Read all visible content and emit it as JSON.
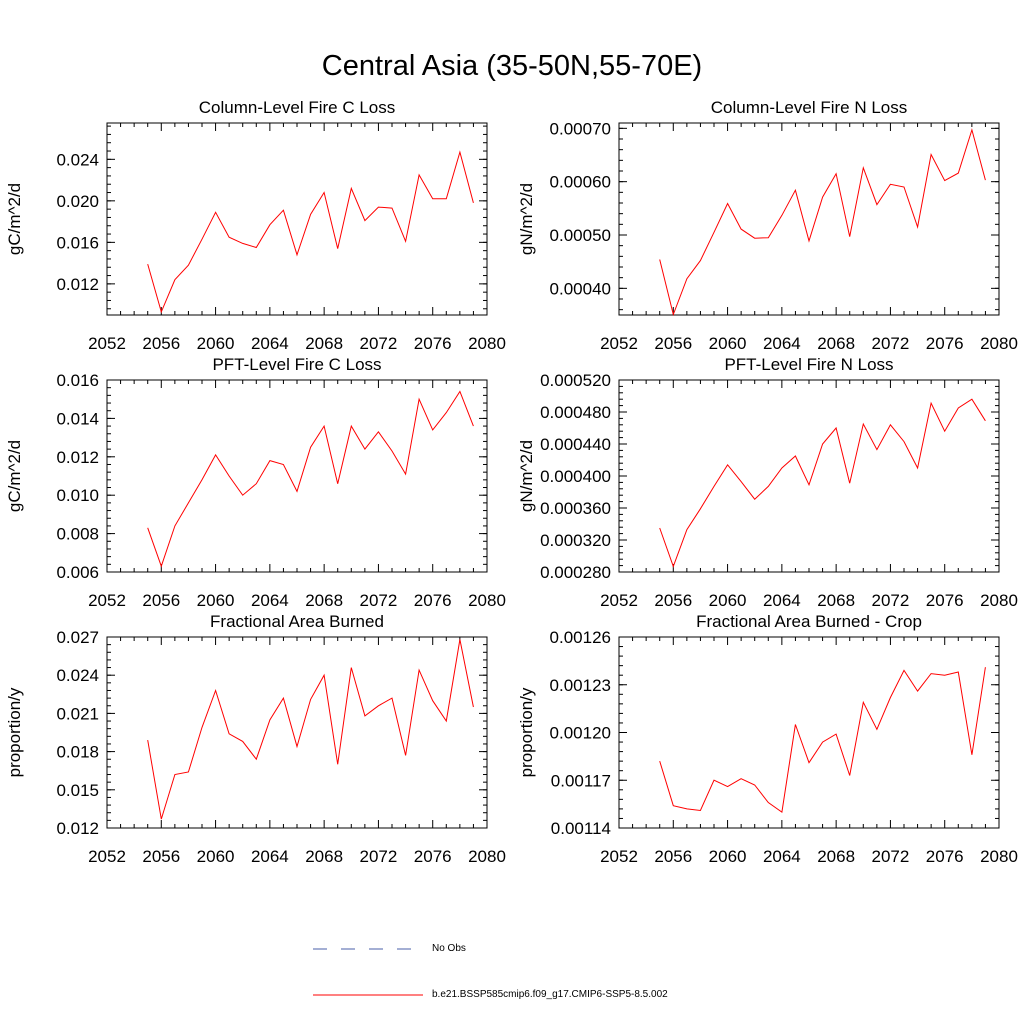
{
  "main_title": "Central Asia (35-50N,55-70E)",
  "legend": [
    {
      "label": "No Obs",
      "color": "#4a5fa8",
      "dashed": true
    },
    {
      "label": "b.e21.BSSP585cmip6.f09_g17.CMIP6-SSP5-8.5.002",
      "color": "#ff0000",
      "dashed": false
    }
  ],
  "chart_data": [
    {
      "type": "line",
      "title": "Column-Level Fire C Loss",
      "ylabel": "gC/m^2/d",
      "xlim": [
        2052,
        2080
      ],
      "ylim": [
        0.009,
        0.0275
      ],
      "xticks": [
        2052,
        2056,
        2060,
        2064,
        2068,
        2072,
        2076,
        2080
      ],
      "yticks": [
        0.012,
        0.016,
        0.02,
        0.024
      ],
      "ytick_labels": [
        "0.012",
        "0.016",
        "0.020",
        "0.024"
      ],
      "series": [
        {
          "name": "b.e21.BSSP585cmip6.f09_g17.CMIP6-SSP5-8.5.002",
          "color": "#ff0000",
          "x": [
            2055,
            2056,
            2057,
            2058,
            2059,
            2060,
            2061,
            2062,
            2063,
            2064,
            2065,
            2066,
            2067,
            2068,
            2069,
            2070,
            2071,
            2072,
            2073,
            2074,
            2075,
            2076,
            2077,
            2078,
            2079
          ],
          "y": [
            0.0139,
            0.0093,
            0.0124,
            0.0138,
            0.0163,
            0.0189,
            0.0165,
            0.0159,
            0.0155,
            0.0177,
            0.0191,
            0.0148,
            0.0187,
            0.0208,
            0.0154,
            0.0212,
            0.0181,
            0.0194,
            0.0193,
            0.0161,
            0.0225,
            0.0202,
            0.0202,
            0.0247,
            0.0198
          ]
        }
      ]
    },
    {
      "type": "line",
      "title": "Column-Level Fire N Loss",
      "ylabel": "gN/m^2/d",
      "xlim": [
        2052,
        2080
      ],
      "ylim": [
        0.00035,
        0.00071
      ],
      "xticks": [
        2052,
        2056,
        2060,
        2064,
        2068,
        2072,
        2076,
        2080
      ],
      "yticks": [
        0.0004,
        0.0005,
        0.0006,
        0.0007
      ],
      "ytick_labels": [
        "0.00040",
        "0.00050",
        "0.00060",
        "0.00070"
      ],
      "series": [
        {
          "name": "b.e21.BSSP585cmip6.f09_g17.CMIP6-SSP5-8.5.002",
          "color": "#ff0000",
          "x": [
            2055,
            2056,
            2057,
            2058,
            2059,
            2060,
            2061,
            2062,
            2063,
            2064,
            2065,
            2066,
            2067,
            2068,
            2069,
            2070,
            2071,
            2072,
            2073,
            2074,
            2075,
            2076,
            2077,
            2078,
            2079
          ],
          "y": [
            0.000454,
            0.000351,
            0.000418,
            0.000452,
            0.000505,
            0.000559,
            0.000511,
            0.000494,
            0.000495,
            0.000537,
            0.000584,
            0.000489,
            0.000571,
            0.000615,
            0.000497,
            0.000626,
            0.000557,
            0.000595,
            0.00059,
            0.000515,
            0.000651,
            0.000602,
            0.000616,
            0.000697,
            0.000603
          ]
        }
      ]
    },
    {
      "type": "line",
      "title": "PFT-Level Fire C Loss",
      "ylabel": "gC/m^2/d",
      "xlim": [
        2052,
        2080
      ],
      "ylim": [
        0.006,
        0.016
      ],
      "xticks": [
        2052,
        2056,
        2060,
        2064,
        2068,
        2072,
        2076,
        2080
      ],
      "yticks": [
        0.006,
        0.008,
        0.01,
        0.012,
        0.014,
        0.016
      ],
      "ytick_labels": [
        "0.006",
        "0.008",
        "0.010",
        "0.012",
        "0.014",
        "0.016"
      ],
      "series": [
        {
          "name": "b.e21.BSSP585cmip6.f09_g17.CMIP6-SSP5-8.5.002",
          "color": "#ff0000",
          "x": [
            2055,
            2056,
            2057,
            2058,
            2059,
            2060,
            2061,
            2062,
            2063,
            2064,
            2065,
            2066,
            2067,
            2068,
            2069,
            2070,
            2071,
            2072,
            2073,
            2074,
            2075,
            2076,
            2077,
            2078,
            2079
          ],
          "y": [
            0.0083,
            0.0063,
            0.0084,
            0.0096,
            0.0108,
            0.0121,
            0.011,
            0.01,
            0.0106,
            0.0118,
            0.0116,
            0.0102,
            0.0125,
            0.0136,
            0.0106,
            0.0136,
            0.0124,
            0.0133,
            0.0123,
            0.0111,
            0.015,
            0.0134,
            0.0143,
            0.0154,
            0.0136
          ]
        }
      ]
    },
    {
      "type": "line",
      "title": "PFT-Level Fire N Loss",
      "ylabel": "gN/m^2/d",
      "xlim": [
        2052,
        2080
      ],
      "ylim": [
        0.00028,
        0.00052
      ],
      "xticks": [
        2052,
        2056,
        2060,
        2064,
        2068,
        2072,
        2076,
        2080
      ],
      "yticks": [
        0.00028,
        0.00032,
        0.00036,
        0.0004,
        0.00044,
        0.00048,
        0.00052
      ],
      "ytick_labels": [
        "0.000280",
        "0.000320",
        "0.000360",
        "0.000400",
        "0.000440",
        "0.000480",
        "0.000520"
      ],
      "series": [
        {
          "name": "b.e21.BSSP585cmip6.f09_g17.CMIP6-SSP5-8.5.002",
          "color": "#ff0000",
          "x": [
            2055,
            2056,
            2057,
            2058,
            2059,
            2060,
            2061,
            2062,
            2063,
            2064,
            2065,
            2066,
            2067,
            2068,
            2069,
            2070,
            2071,
            2072,
            2073,
            2074,
            2075,
            2076,
            2077,
            2078,
            2079
          ],
          "y": [
            0.000335,
            0.000287,
            0.000333,
            0.000359,
            0.000387,
            0.000414,
            0.000393,
            0.000371,
            0.000387,
            0.00041,
            0.000425,
            0.000389,
            0.00044,
            0.00046,
            0.000391,
            0.000465,
            0.000433,
            0.000464,
            0.000443,
            0.00041,
            0.000491,
            0.000456,
            0.000485,
            0.000496,
            0.000469
          ]
        }
      ]
    },
    {
      "type": "line",
      "title": "Fractional Area Burned",
      "ylabel": "proportion/y",
      "xlim": [
        2052,
        2080
      ],
      "ylim": [
        0.012,
        0.027
      ],
      "xticks": [
        2052,
        2056,
        2060,
        2064,
        2068,
        2072,
        2076,
        2080
      ],
      "yticks": [
        0.012,
        0.015,
        0.018,
        0.021,
        0.024,
        0.027
      ],
      "ytick_labels": [
        "0.012",
        "0.015",
        "0.018",
        "0.021",
        "0.024",
        "0.027"
      ],
      "series": [
        {
          "name": "b.e21.BSSP585cmip6.f09_g17.CMIP6-SSP5-8.5.002",
          "color": "#ff0000",
          "x": [
            2055,
            2056,
            2057,
            2058,
            2059,
            2060,
            2061,
            2062,
            2063,
            2064,
            2065,
            2066,
            2067,
            2068,
            2069,
            2070,
            2071,
            2072,
            2073,
            2074,
            2075,
            2076,
            2077,
            2078,
            2079
          ],
          "y": [
            0.0189,
            0.0127,
            0.0162,
            0.0164,
            0.0199,
            0.0228,
            0.0194,
            0.0188,
            0.0174,
            0.0205,
            0.0222,
            0.0184,
            0.0221,
            0.024,
            0.017,
            0.0246,
            0.0208,
            0.0216,
            0.0222,
            0.0177,
            0.0244,
            0.022,
            0.0204,
            0.0268,
            0.0215
          ]
        }
      ]
    },
    {
      "type": "line",
      "title": "Fractional Area Burned - Crop",
      "ylabel": "proportion/y",
      "xlim": [
        2052,
        2080
      ],
      "ylim": [
        0.00114,
        0.00126
      ],
      "xticks": [
        2052,
        2056,
        2060,
        2064,
        2068,
        2072,
        2076,
        2080
      ],
      "yticks": [
        0.00114,
        0.00117,
        0.0012,
        0.00123,
        0.00126
      ],
      "ytick_labels": [
        "0.00114",
        "0.00117",
        "0.00120",
        "0.00123",
        "0.00126"
      ],
      "series": [
        {
          "name": "b.e21.BSSP585cmip6.f09_g17.CMIP6-SSP5-8.5.002",
          "color": "#ff0000",
          "x": [
            2055,
            2056,
            2057,
            2058,
            2059,
            2060,
            2061,
            2062,
            2063,
            2064,
            2065,
            2066,
            2067,
            2068,
            2069,
            2070,
            2071,
            2072,
            2073,
            2074,
            2075,
            2076,
            2077,
            2078,
            2079
          ],
          "y": [
            0.001182,
            0.001154,
            0.001152,
            0.001151,
            0.00117,
            0.001166,
            0.001171,
            0.001167,
            0.001156,
            0.00115,
            0.001205,
            0.001181,
            0.001194,
            0.001199,
            0.001173,
            0.001219,
            0.001202,
            0.001222,
            0.001239,
            0.001226,
            0.001237,
            0.001236,
            0.001238,
            0.001186,
            0.001241
          ]
        }
      ]
    }
  ]
}
